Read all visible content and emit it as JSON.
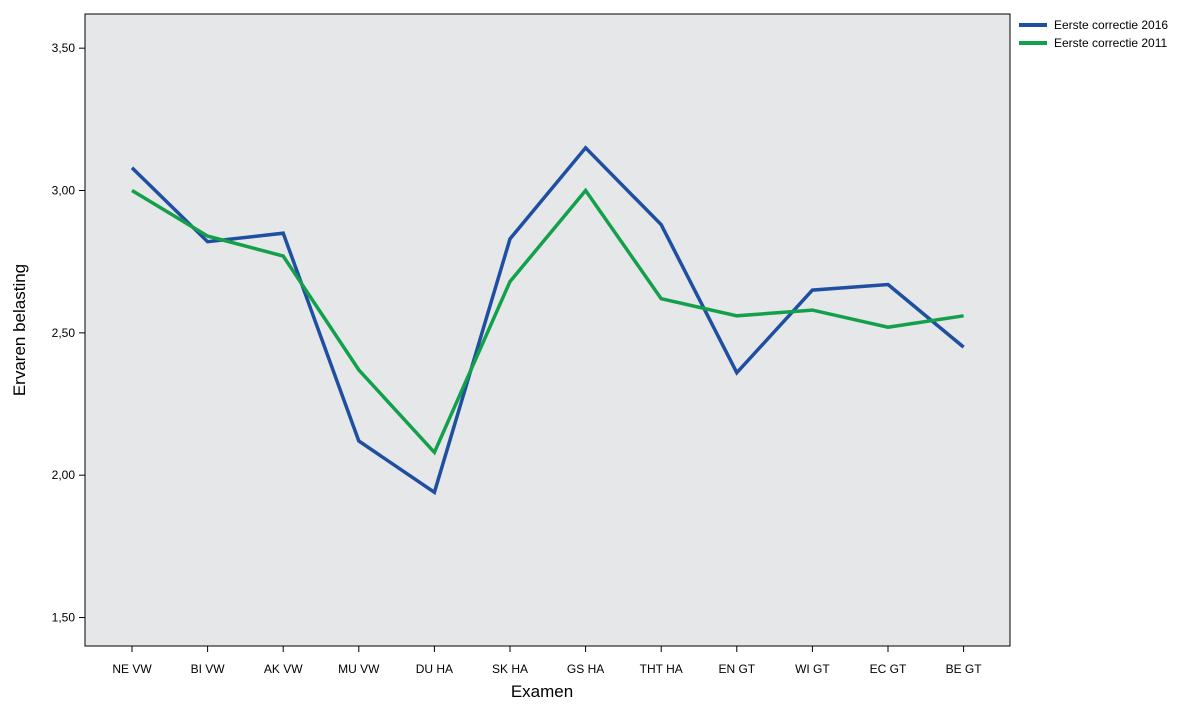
{
  "chart_data": {
    "type": "line",
    "xlabel": "Examen",
    "ylabel": "Ervaren belasting",
    "categories": [
      "NE VW",
      "BI VW",
      "AK VW",
      "MU VW",
      "DU HA",
      "SK HA",
      "GS HA",
      "THT HA",
      "EN GT",
      "WI GT",
      "EC GT",
      "BE GT"
    ],
    "ylim": [
      1.4,
      3.62
    ],
    "yticks": [
      1.5,
      2.0,
      2.5,
      3.0,
      3.5
    ],
    "ytick_labels": [
      "1,50",
      "2,00",
      "2,50",
      "3,00",
      "3,50"
    ],
    "grid": false,
    "legend_position": "top-right, outside plot",
    "plot_background": "#e6e7e9",
    "series": [
      {
        "name": "Eerste correctie 2016",
        "color": "#1f4fa0",
        "values": [
          3.08,
          2.82,
          2.85,
          2.12,
          1.94,
          2.83,
          3.15,
          2.88,
          2.36,
          2.65,
          2.67,
          2.45
        ]
      },
      {
        "name": "Eerste correctie 2011",
        "color": "#13a04a",
        "values": [
          3.0,
          2.84,
          2.77,
          2.37,
          2.08,
          2.68,
          3.0,
          2.62,
          2.56,
          2.58,
          2.52,
          2.56
        ]
      }
    ]
  }
}
